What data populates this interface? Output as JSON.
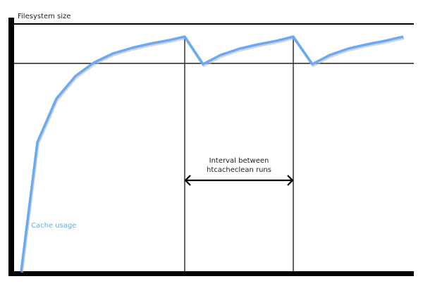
{
  "diagram": {
    "y_axis_label": "Filesystem size",
    "curve_label": "Cache usage",
    "interval_label_line1": "Interval between",
    "interval_label_line2": "htcacheclean runs",
    "colors": {
      "curve": "#6aaaf2",
      "axis": "#000000",
      "lines": "#222222"
    }
  }
}
